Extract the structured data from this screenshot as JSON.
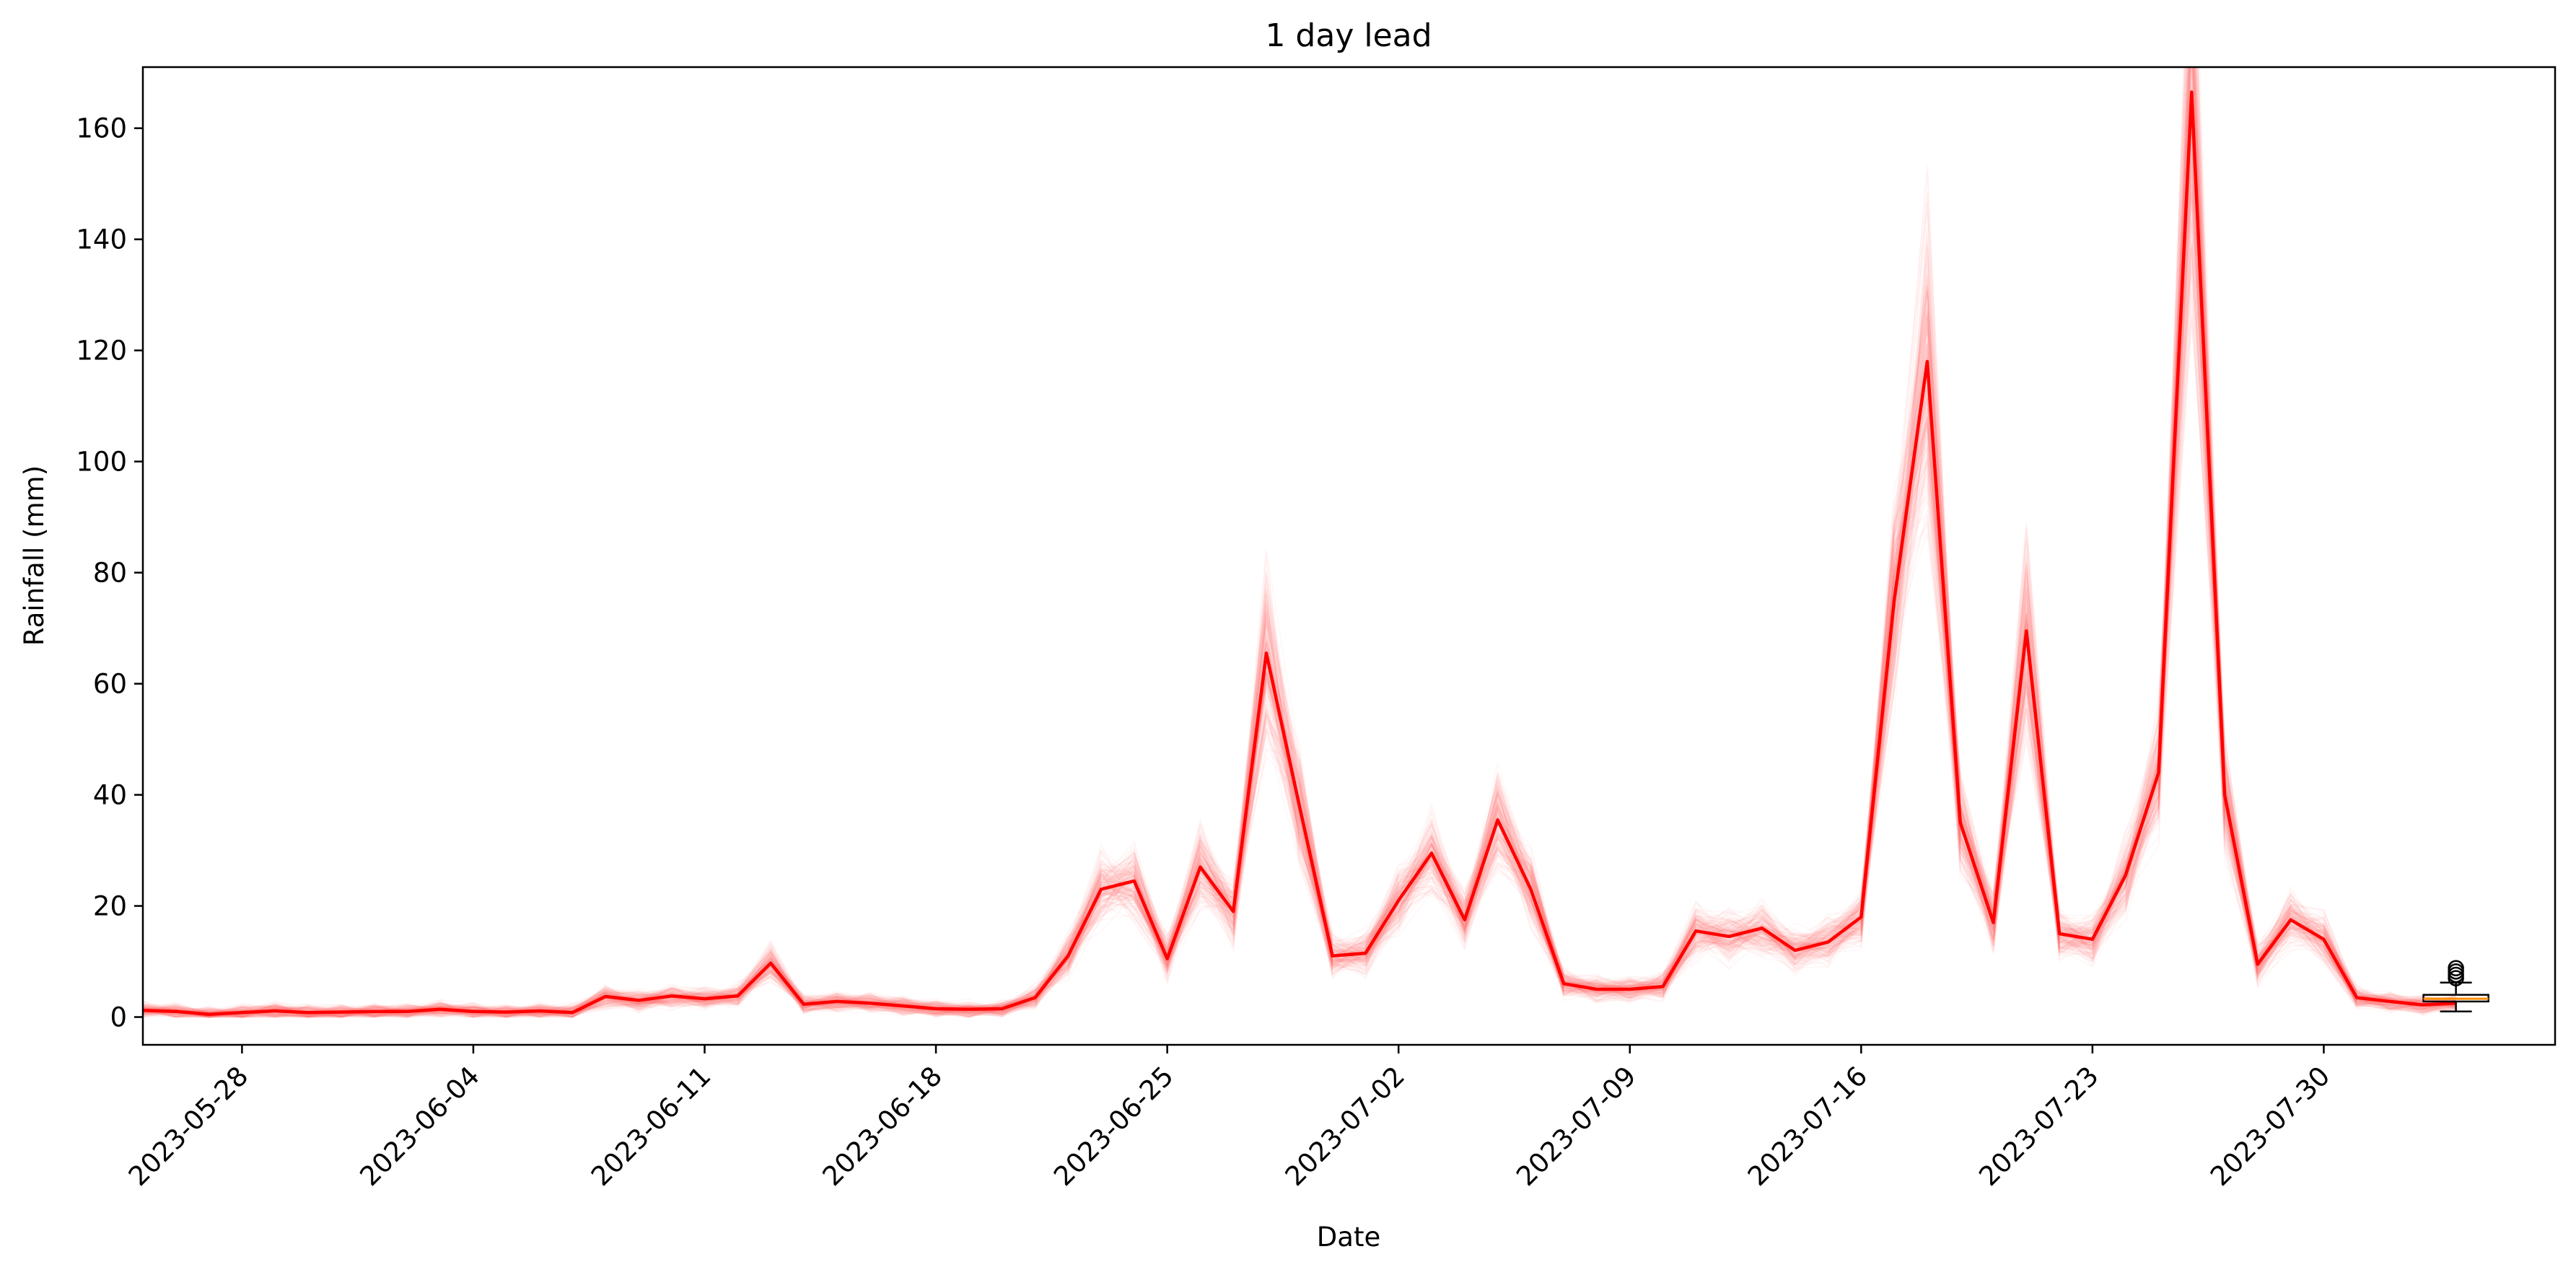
{
  "chart_data": {
    "type": "line",
    "title": "1 day lead",
    "xlabel": "Date",
    "ylabel": "Rainfall (mm)",
    "x_tick_labels": [
      "2023-05-28",
      "2023-06-04",
      "2023-06-11",
      "2023-06-18",
      "2023-06-25",
      "2023-07-02",
      "2023-07-09",
      "2023-07-16",
      "2023-07-23",
      "2023-07-30"
    ],
    "y_ticks": [
      0,
      20,
      40,
      60,
      80,
      100,
      120,
      140,
      160
    ],
    "xlim": [
      "2023-05-25",
      "2023-08-06"
    ],
    "ylim": [
      -5,
      171
    ],
    "grid": false,
    "colors": {
      "line": "#ff0000",
      "ensemble": "#ff6f7a",
      "box": "#000000",
      "median": "#ff8c00"
    },
    "series": [
      {
        "x": [
          "2023-05-25",
          "2023-05-26",
          "2023-05-27",
          "2023-05-28",
          "2023-05-29",
          "2023-05-30",
          "2023-05-31",
          "2023-06-01",
          "2023-06-02",
          "2023-06-03",
          "2023-06-04",
          "2023-06-05",
          "2023-06-06",
          "2023-06-07",
          "2023-06-08",
          "2023-06-09",
          "2023-06-10",
          "2023-06-11",
          "2023-06-12",
          "2023-06-13",
          "2023-06-14",
          "2023-06-15",
          "2023-06-16",
          "2023-06-17",
          "2023-06-18",
          "2023-06-19",
          "2023-06-20",
          "2023-06-21",
          "2023-06-22",
          "2023-06-23",
          "2023-06-24",
          "2023-06-25",
          "2023-06-26",
          "2023-06-27",
          "2023-06-28",
          "2023-06-29",
          "2023-06-30",
          "2023-07-01",
          "2023-07-02",
          "2023-07-03",
          "2023-07-04",
          "2023-07-05",
          "2023-07-06",
          "2023-07-07",
          "2023-07-08",
          "2023-07-09",
          "2023-07-10",
          "2023-07-11",
          "2023-07-12",
          "2023-07-13",
          "2023-07-14",
          "2023-07-15",
          "2023-07-16",
          "2023-07-17",
          "2023-07-18",
          "2023-07-19",
          "2023-07-20",
          "2023-07-21",
          "2023-07-22",
          "2023-07-23",
          "2023-07-24",
          "2023-07-25",
          "2023-07-26",
          "2023-07-27",
          "2023-07-28",
          "2023-07-29",
          "2023-07-30",
          "2023-07-31",
          "2023-08-01",
          "2023-08-02",
          "2023-08-03"
        ],
        "values": [
          1.2,
          1.0,
          0.5,
          0.8,
          1.1,
          0.8,
          0.9,
          1.0,
          1.0,
          1.4,
          1.0,
          0.9,
          1.1,
          0.8,
          3.7,
          3.0,
          3.8,
          3.3,
          3.8,
          9.7,
          2.3,
          2.8,
          2.5,
          2.0,
          1.5,
          1.4,
          1.5,
          3.5,
          11.0,
          23.0,
          24.5,
          10.5,
          27.0,
          19.0,
          65.5,
          38.0,
          11.0,
          11.5,
          21.0,
          29.5,
          17.5,
          35.5,
          23.0,
          6.0,
          5.0,
          5.0,
          5.5,
          15.5,
          14.5,
          16.0,
          12.0,
          13.5,
          18.0,
          75.0,
          118.0,
          35.0,
          17.0,
          69.5,
          15.0,
          14.0,
          25.5,
          44.0,
          166.5,
          40.0,
          9.5,
          17.5,
          14.0,
          3.5,
          2.8,
          2.2,
          2.5
        ]
      }
    ],
    "ensemble_spread": {
      "members": 200
    },
    "boxplot": {
      "x": "2023-08-03",
      "min": 1.0,
      "q1": 2.8,
      "median": 3.3,
      "q3": 4.0,
      "max": 6.2,
      "outliers": [
        7.0,
        7.6,
        8.2,
        8.8
      ]
    }
  }
}
